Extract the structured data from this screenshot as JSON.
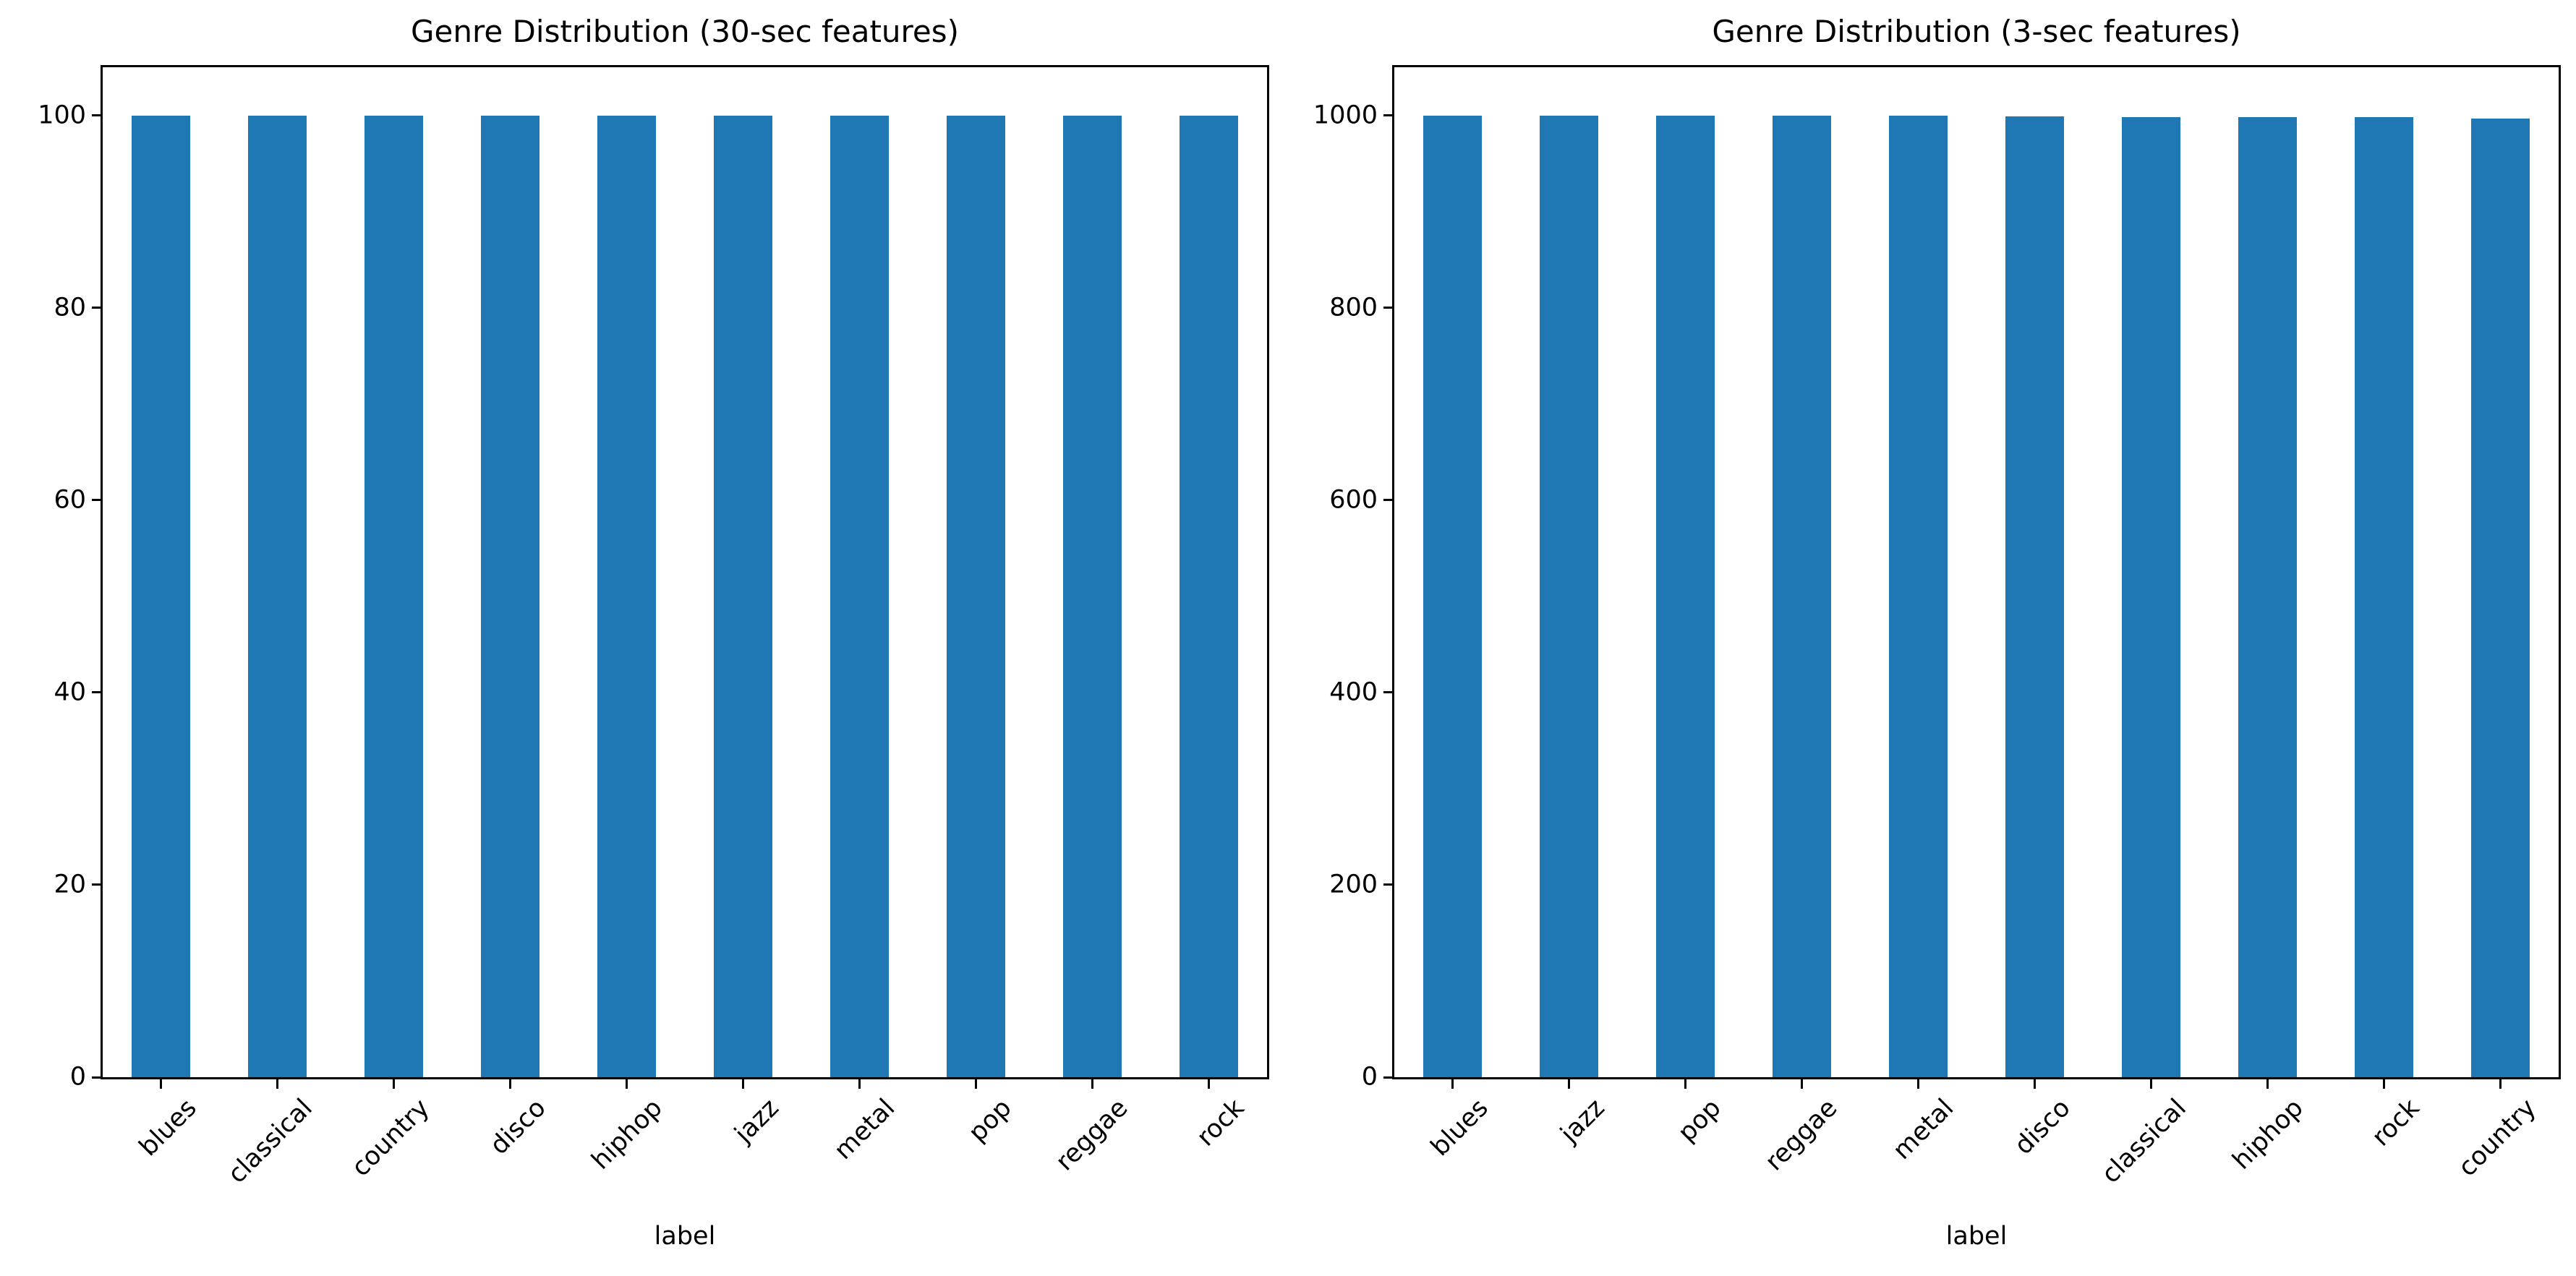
{
  "figure": {
    "background_color": "#ffffff",
    "text_color": "#000000",
    "spine_color": "#000000"
  },
  "chart_data": [
    {
      "type": "bar",
      "title": "Genre Distribution (30-sec features)",
      "xlabel": "label",
      "ylabel": "",
      "categories": [
        "blues",
        "classical",
        "country",
        "disco",
        "hiphop",
        "jazz",
        "metal",
        "pop",
        "reggae",
        "rock"
      ],
      "values": [
        100,
        100,
        100,
        100,
        100,
        100,
        100,
        100,
        100,
        100
      ],
      "yticks": [
        0,
        20,
        40,
        60,
        80,
        100
      ],
      "ylim": [
        0,
        105
      ],
      "bar_color": "#1f77b4",
      "grid": false,
      "legend": "none",
      "x_tick_rotation_deg": 45
    },
    {
      "type": "bar",
      "title": "Genre Distribution (3-sec features)",
      "xlabel": "label",
      "ylabel": "",
      "categories": [
        "blues",
        "jazz",
        "pop",
        "reggae",
        "metal",
        "disco",
        "classical",
        "hiphop",
        "rock",
        "country"
      ],
      "values": [
        1000,
        1000,
        1000,
        1000,
        1000,
        999,
        998,
        998,
        998,
        997
      ],
      "yticks": [
        0,
        200,
        400,
        600,
        800,
        1000
      ],
      "ylim": [
        0,
        1050
      ],
      "bar_color": "#1f77b4",
      "grid": false,
      "legend": "none",
      "x_tick_rotation_deg": 45
    }
  ]
}
